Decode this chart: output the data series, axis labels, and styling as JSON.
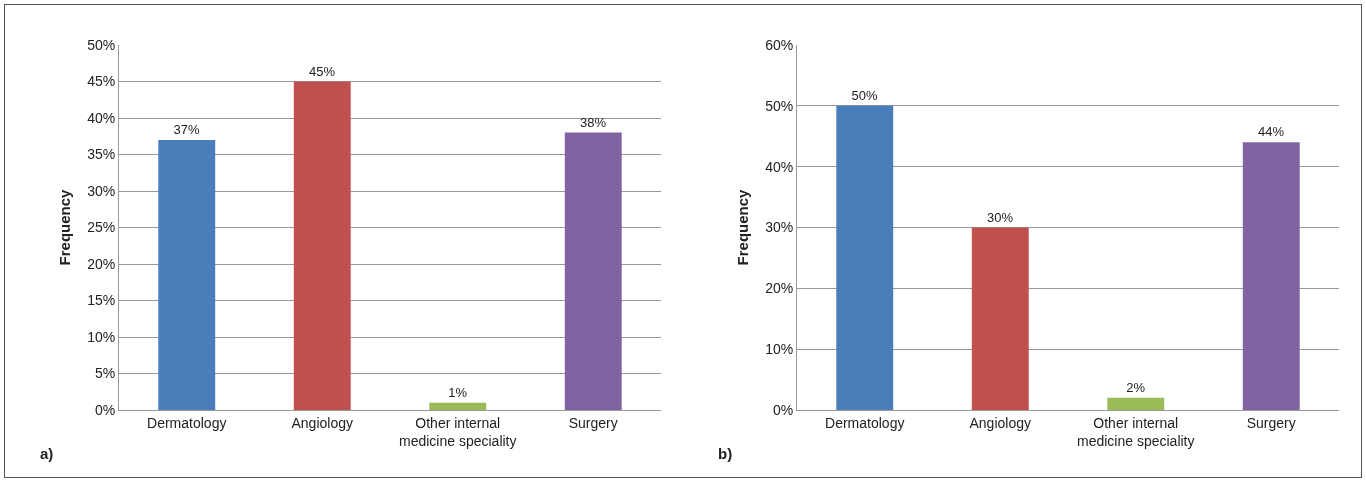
{
  "chart_data": [
    {
      "type": "bar",
      "ylabel": "Frequency",
      "categories": [
        "Dermatology",
        "Angiology",
        "Other internal\nmedicine speciality",
        "Surgery"
      ],
      "values": [
        37,
        45,
        1,
        38
      ],
      "value_labels": [
        "37%",
        "45%",
        "1%",
        "38%"
      ],
      "colors": [
        "#4a7ebb",
        "#c0504d",
        "#9bbb59",
        "#8064a2"
      ],
      "ylim": [
        0,
        50
      ],
      "yticks": [
        {
          "value": 0,
          "label": "0%"
        },
        {
          "value": 5,
          "label": "5%"
        },
        {
          "value": 10,
          "label": "10%"
        },
        {
          "value": 15,
          "label": "15%"
        },
        {
          "value": 20,
          "label": "20%"
        },
        {
          "value": 25,
          "label": "25%"
        },
        {
          "value": 30,
          "label": "30%"
        },
        {
          "value": 35,
          "label": "35%"
        },
        {
          "value": 40,
          "label": "40%"
        },
        {
          "value": 45,
          "label": "45%"
        },
        {
          "value": 50,
          "label": "50%"
        }
      ],
      "grid": "y",
      "annotations": [
        "a)"
      ]
    },
    {
      "type": "bar",
      "ylabel": "Frequency",
      "categories": [
        "Dermatology",
        "Angiology",
        "Other internal\nmedicine speciality",
        "Surgery"
      ],
      "values": [
        50,
        30,
        2,
        44
      ],
      "value_labels": [
        "50%",
        "30%",
        "2%",
        "44%"
      ],
      "colors": [
        "#4a7ebb",
        "#c0504d",
        "#9bbb59",
        "#8064a2"
      ],
      "ylim": [
        0,
        60
      ],
      "yticks": [
        {
          "value": 0,
          "label": "0%"
        },
        {
          "value": 10,
          "label": "10%"
        },
        {
          "value": 20,
          "label": "20%"
        },
        {
          "value": 30,
          "label": "30%"
        },
        {
          "value": 40,
          "label": "40%"
        },
        {
          "value": 50,
          "label": "50%"
        },
        {
          "value": 60,
          "label": "60%"
        }
      ],
      "grid": "y",
      "annotations": [
        "b)"
      ]
    }
  ]
}
